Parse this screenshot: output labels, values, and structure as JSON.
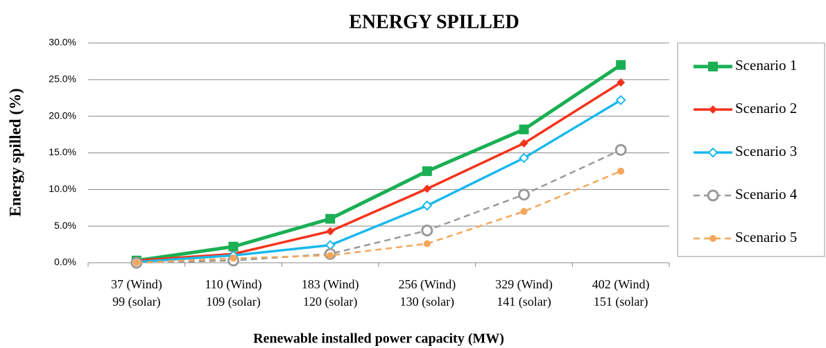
{
  "chart_data": {
    "type": "line",
    "title": "ENERGY SPILLED",
    "x_label": "Renewable installed power capacity (MW)",
    "y_label": "Energy spilled (%)",
    "categories": [
      [
        "37 (Wind)",
        "99 (solar)"
      ],
      [
        "110 (Wind)",
        "109 (solar)"
      ],
      [
        "183 (Wind)",
        "120 (solar)"
      ],
      [
        "256 (Wind)",
        "130 (solar)"
      ],
      [
        "329 (Wind)",
        "141 (solar)"
      ],
      [
        "402 (Wind)",
        "151 (solar)"
      ]
    ],
    "series": [
      {
        "name": "Scenario 1",
        "color": "#1aaf54",
        "marker": "square",
        "dashed": false,
        "width": 5,
        "values": [
          0.3,
          2.2,
          6.0,
          12.5,
          18.2,
          27.0
        ]
      },
      {
        "name": "Scenario 2",
        "color": "#f5321b",
        "marker": "diamond",
        "dashed": false,
        "width": 3.5,
        "values": [
          0.3,
          1.2,
          4.3,
          10.1,
          16.3,
          24.6
        ]
      },
      {
        "name": "Scenario 3",
        "color": "#1ab8ec",
        "marker": "hollow-diamond",
        "dashed": false,
        "width": 3.5,
        "values": [
          0.1,
          1.0,
          2.4,
          7.8,
          14.3,
          22.2
        ]
      },
      {
        "name": "Scenario 4",
        "color": "#999999",
        "marker": "hollow-circle",
        "dashed": true,
        "width": 2.5,
        "values": [
          0.0,
          0.3,
          1.2,
          4.4,
          9.3,
          15.4
        ]
      },
      {
        "name": "Scenario 5",
        "color": "#f5a65b",
        "marker": "dot",
        "dashed": true,
        "width": 2.5,
        "values": [
          0.0,
          0.6,
          1.0,
          2.6,
          7.0,
          12.5
        ]
      }
    ],
    "ylim": [
      0,
      30
    ],
    "yticks": [
      {
        "value": 0,
        "label": "0.0%"
      },
      {
        "value": 5,
        "label": "5.0%"
      },
      {
        "value": 10,
        "label": "10.0%"
      },
      {
        "value": 15,
        "label": "15.0%"
      },
      {
        "value": 20,
        "label": "20.0%"
      },
      {
        "value": 25,
        "label": "25.0%"
      },
      {
        "value": 30,
        "label": "30.0%"
      }
    ],
    "grid": true,
    "legend": "right"
  }
}
